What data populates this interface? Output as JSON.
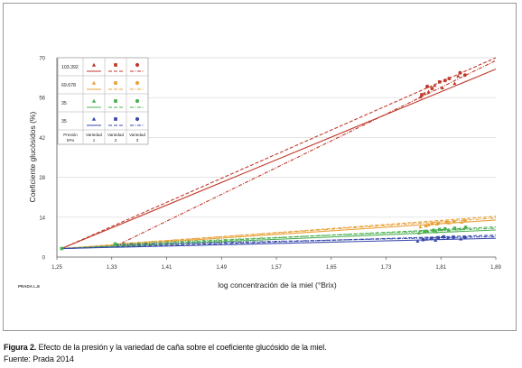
{
  "figure": {
    "caption_label": "Figura 2.",
    "caption_text": "Efecto de la presión y la variedad de caña sobre el coeficiente glucósido de la miel.",
    "source": "Fuente: Prada 2014",
    "watermark": "PRADA L.E"
  },
  "colors": {
    "red": "#c0392b",
    "orange": "#e8a23a",
    "green": "#4caf50",
    "blue": "#3949ab"
  },
  "legend": {
    "rows": [
      {
        "pressure": "103.392",
        "color": "red"
      },
      {
        "pressure": "69.678",
        "color": "orange"
      },
      {
        "pressure": "35",
        "color": "green"
      },
      {
        "pressure": "35",
        "color": "blue"
      }
    ],
    "header_pressure": [
      "Presión",
      "kPa"
    ],
    "header_varieties": [
      [
        "Variedad",
        "1"
      ],
      [
        "Variedad",
        "2"
      ],
      [
        "Variedad",
        "3"
      ]
    ]
  },
  "chart_data": {
    "type": "scatter",
    "title": "",
    "xlabel": "log concentración de la miel (°Brix)",
    "ylabel": "Coeficiente glucósidos (%)",
    "xlim": [
      1.25,
      1.89
    ],
    "ylim": [
      0,
      70
    ],
    "xticks": [
      "1,25",
      "1,33",
      "1,41",
      "1,49",
      "1,57",
      "1,65",
      "1,73",
      "1,81",
      "1,89"
    ],
    "yticks": [
      "0",
      "14",
      "28",
      "42",
      "56",
      "70"
    ],
    "grid": "horizontal",
    "legend_position": "top-left",
    "series": [
      {
        "color": "red",
        "marker": "triangle",
        "points": [
          [
            1.78,
            56.2
          ],
          [
            1.786,
            57.5
          ],
          [
            1.792,
            58.1
          ],
          [
            1.801,
            60.3
          ],
          [
            1.812,
            59.4
          ],
          [
            1.83,
            61.0
          ],
          [
            1.835,
            63.6
          ]
        ]
      },
      {
        "color": "red",
        "marker": "square",
        "points": [
          [
            1.782,
            57.0
          ],
          [
            1.797,
            59.2
          ],
          [
            1.808,
            61.5
          ],
          [
            1.822,
            62.7
          ]
        ]
      },
      {
        "color": "red",
        "marker": "circle",
        "points": [
          [
            1.79,
            59.9
          ],
          [
            1.816,
            62.0
          ],
          [
            1.838,
            64.7
          ],
          [
            1.845,
            63.9
          ]
        ]
      },
      {
        "color": "orange",
        "marker": "triangle",
        "points": [
          [
            1.78,
            10.6
          ],
          [
            1.792,
            11.3
          ],
          [
            1.804,
            11.6
          ],
          [
            1.822,
            12.0
          ],
          [
            1.84,
            12.3
          ]
        ]
      },
      {
        "color": "orange",
        "marker": "square",
        "points": [
          [
            1.788,
            11.0
          ],
          [
            1.806,
            11.9
          ],
          [
            1.829,
            12.4
          ]
        ]
      },
      {
        "color": "orange",
        "marker": "circle",
        "points": [
          [
            1.797,
            11.7
          ],
          [
            1.818,
            12.2
          ],
          [
            1.845,
            12.8
          ]
        ]
      },
      {
        "color": "green",
        "marker": "triangle",
        "points": [
          [
            1.778,
            8.5
          ],
          [
            1.79,
            9.2
          ],
          [
            1.803,
            8.9
          ],
          [
            1.821,
            9.5
          ],
          [
            1.838,
            9.9
          ]
        ]
      },
      {
        "color": "green",
        "marker": "square",
        "points": [
          [
            1.786,
            9.0
          ],
          [
            1.808,
            9.7
          ],
          [
            1.83,
            10.1
          ]
        ]
      },
      {
        "color": "green",
        "marker": "circle",
        "points": [
          [
            1.799,
            9.4
          ],
          [
            1.816,
            9.9
          ],
          [
            1.846,
            10.4
          ]
        ]
      },
      {
        "color": "blue",
        "marker": "triangle",
        "points": [
          [
            1.776,
            5.6
          ],
          [
            1.789,
            6.3
          ],
          [
            1.802,
            5.9
          ],
          [
            1.82,
            6.7
          ],
          [
            1.839,
            6.4
          ]
        ]
      },
      {
        "color": "blue",
        "marker": "square",
        "points": [
          [
            1.784,
            6.1
          ],
          [
            1.806,
            6.8
          ],
          [
            1.828,
            7.0
          ]
        ]
      },
      {
        "color": "blue",
        "marker": "circle",
        "points": [
          [
            1.796,
            6.5
          ],
          [
            1.814,
            7.1
          ],
          [
            1.845,
            6.9
          ]
        ]
      }
    ],
    "fits": [
      {
        "color": "red",
        "style": "solid",
        "from": [
          1.257,
          3.0
        ],
        "to": [
          1.89,
          66.0
        ]
      },
      {
        "color": "red",
        "style": "dashed",
        "from": [
          1.257,
          3.0
        ],
        "to": [
          1.89,
          70.0
        ]
      },
      {
        "color": "red",
        "style": "dashdot",
        "from": [
          1.335,
          3.8
        ],
        "to": [
          1.89,
          69.0
        ]
      },
      {
        "color": "orange",
        "style": "solid",
        "from": [
          1.257,
          3.0
        ],
        "to": [
          1.89,
          13.0
        ]
      },
      {
        "color": "orange",
        "style": "dashed",
        "from": [
          1.257,
          3.0
        ],
        "to": [
          1.89,
          14.3
        ]
      },
      {
        "color": "orange",
        "style": "dashdot",
        "from": [
          1.335,
          4.6
        ],
        "to": [
          1.89,
          13.7
        ]
      },
      {
        "color": "green",
        "style": "solid",
        "from": [
          1.257,
          3.0
        ],
        "to": [
          1.89,
          9.5
        ]
      },
      {
        "color": "green",
        "style": "dashed",
        "from": [
          1.257,
          3.0
        ],
        "to": [
          1.89,
          10.6
        ]
      },
      {
        "color": "green",
        "style": "dashdot",
        "from": [
          1.335,
          4.5
        ],
        "to": [
          1.89,
          10.1
        ]
      },
      {
        "color": "blue",
        "style": "solid",
        "from": [
          1.257,
          3.0
        ],
        "to": [
          1.89,
          6.6
        ]
      },
      {
        "color": "blue",
        "style": "dashed",
        "from": [
          1.257,
          3.0
        ],
        "to": [
          1.89,
          7.7
        ]
      },
      {
        "color": "blue",
        "style": "dashdot",
        "from": [
          1.335,
          4.3
        ],
        "to": [
          1.89,
          7.2
        ]
      }
    ],
    "origin_points": [
      [
        1.257,
        3.0
      ],
      [
        1.335,
        4.6
      ]
    ]
  }
}
